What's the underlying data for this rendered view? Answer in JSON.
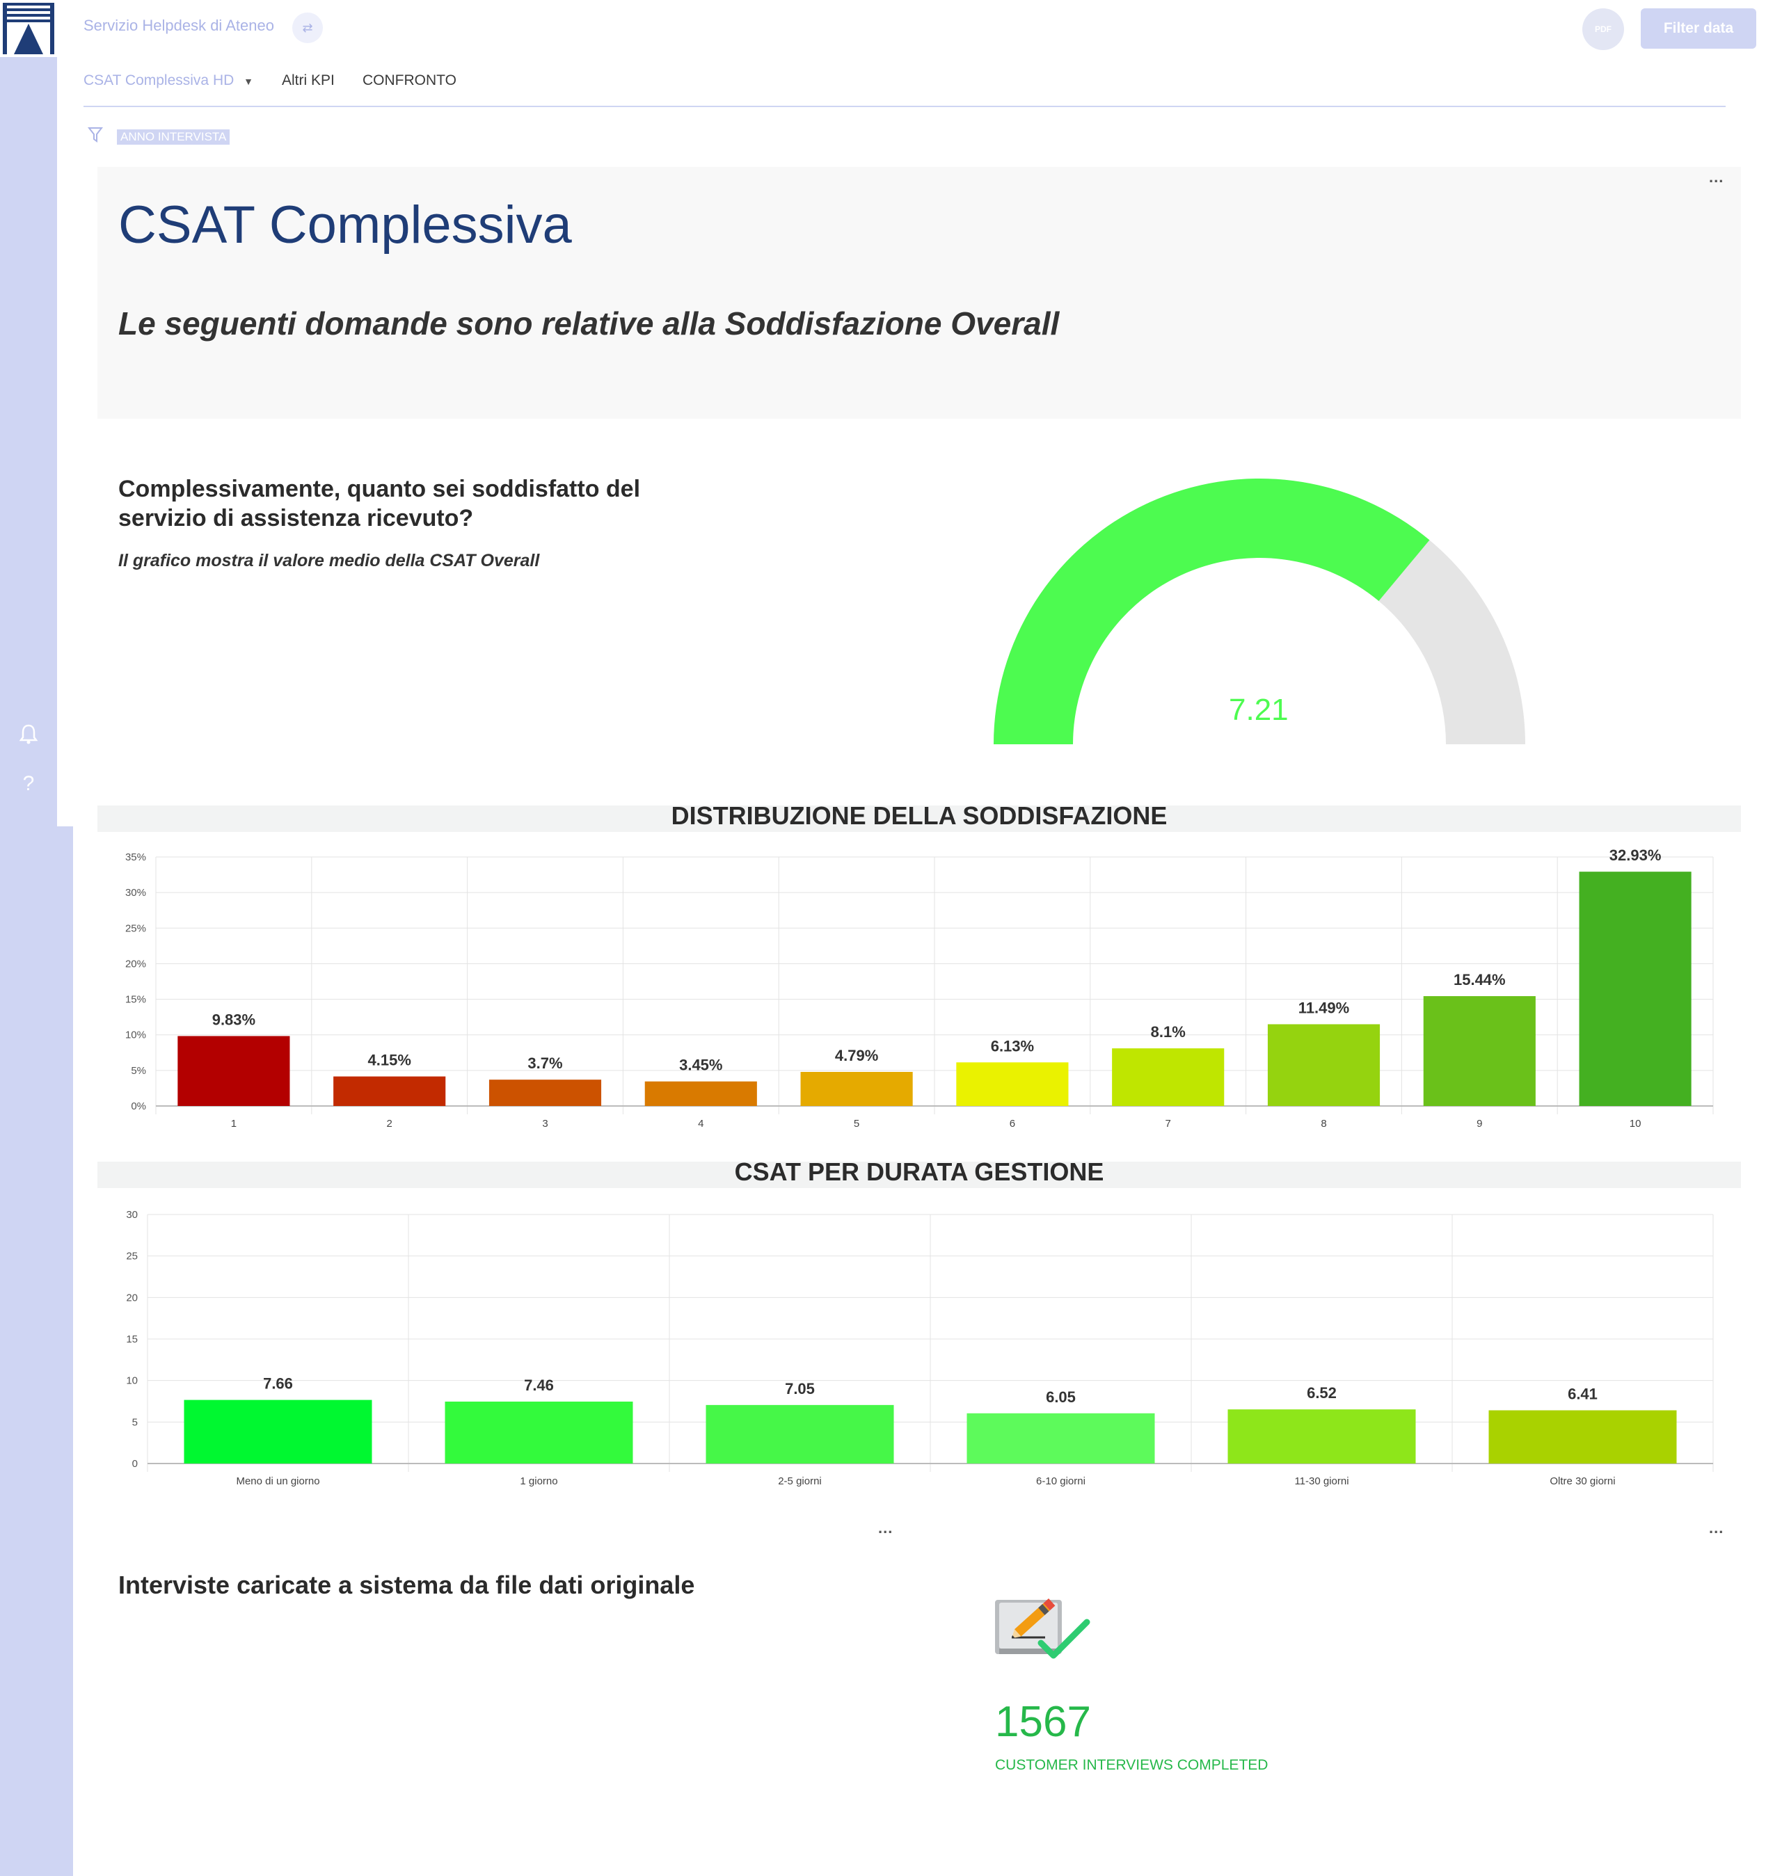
{
  "app": {
    "title": "Servizio Helpdesk di Ateneo",
    "pdf_label": "PDF",
    "filter_button": "Filter data"
  },
  "tabs": [
    {
      "label": "CSAT Complessiva HD"
    },
    {
      "label": "Altri KPI"
    },
    {
      "label": "CONFRONTO"
    }
  ],
  "filters": {
    "active_tag": "ANNO INTERVISTA"
  },
  "intro": {
    "title": "CSAT Complessiva",
    "subtitle": "Le seguenti domande sono relative alla Soddisfazione Overall"
  },
  "question": {
    "text": "Complessivamente, quanto sei soddisfatto del servizio di assistenza ricevuto?",
    "note": "Il grafico mostra il valore medio della CSAT Overall"
  },
  "gauge": {
    "value": "7.21",
    "numeric": 7.21,
    "min": 0,
    "max": 10,
    "fill_color": "#4dfb50",
    "track_color": "#e5e5e5"
  },
  "chart_data": [
    {
      "type": "bar",
      "title": "DISTRIBUZIONE DELLA SODDISFAZIONE",
      "categories": [
        "1",
        "2",
        "3",
        "4",
        "5",
        "6",
        "7",
        "8",
        "9",
        "10"
      ],
      "values": [
        9.83,
        4.15,
        3.7,
        3.45,
        4.79,
        6.13,
        8.1,
        11.49,
        15.44,
        32.93
      ],
      "data_labels": [
        "9.83%",
        "4.15%",
        "3.7%",
        "3.45%",
        "4.79%",
        "6.13%",
        "8.1%",
        "11.49%",
        "15.44%",
        "32.93%"
      ],
      "yticks": [
        "0%",
        "5%",
        "10%",
        "15%",
        "20%",
        "25%",
        "30%",
        "35%"
      ],
      "ylim": [
        0,
        35
      ],
      "grid": true,
      "colors": [
        "#b30000",
        "#c22a00",
        "#cc5200",
        "#d97a00",
        "#e5aa00",
        "#eaf200",
        "#bfe600",
        "#95d30f",
        "#6ac11a",
        "#44b021"
      ]
    },
    {
      "type": "bar",
      "title": "CSAT PER DURATA GESTIONE",
      "categories": [
        "Meno di un giorno",
        "1 giorno",
        "2-5 giorni",
        "6-10 giorni",
        "11-30 giorni",
        "Oltre 30 giorni"
      ],
      "values": [
        7.66,
        7.46,
        7.05,
        6.05,
        6.52,
        6.41
      ],
      "data_labels": [
        "7.66",
        "7.46",
        "7.05",
        "6.05",
        "6.52",
        "6.41"
      ],
      "yticks": [
        "0",
        "5",
        "10",
        "15",
        "20",
        "25",
        "30"
      ],
      "ylim": [
        0,
        30
      ],
      "grid": true,
      "colors": [
        "#00f830",
        "#33fa3c",
        "#46f748",
        "#5dfa5b",
        "#8ee61a",
        "#a9d200"
      ]
    }
  ],
  "interviews": {
    "title": "Interviste caricate a sistema da file dati originale",
    "value": "1567",
    "label": "CUSTOMER INTERVIEWS COMPLETED"
  },
  "sidebar": {
    "icons": [
      "bell-icon",
      "help-icon"
    ],
    "help_glyph": "?"
  },
  "menu_dots": "..."
}
